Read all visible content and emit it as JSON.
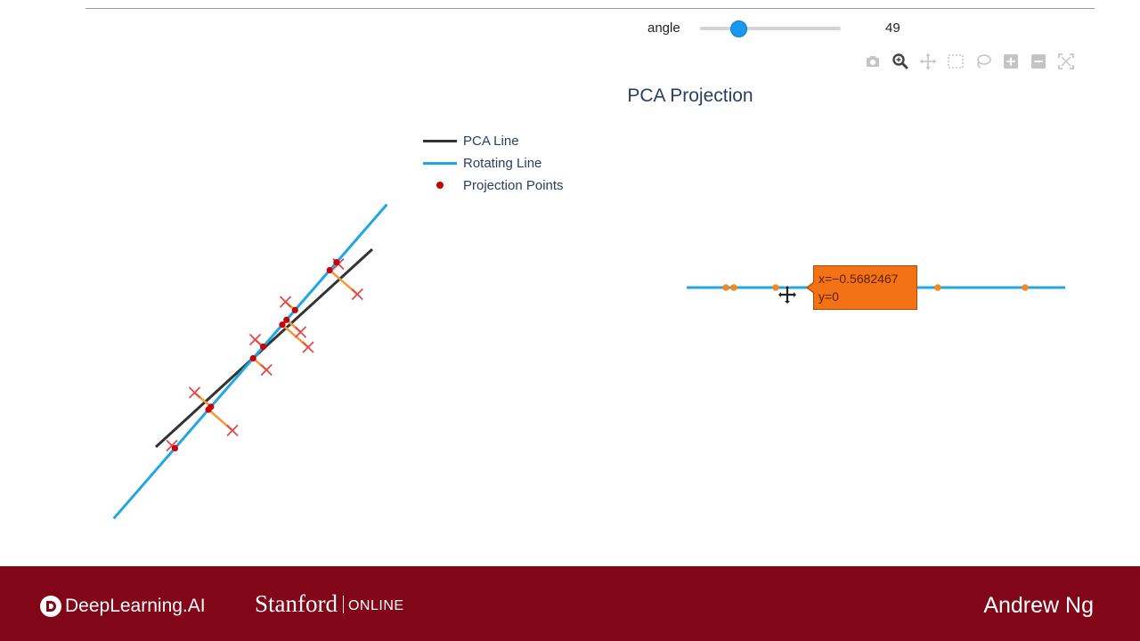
{
  "slider": {
    "label": "angle",
    "value": "49",
    "min": 0,
    "max": 180,
    "position_value": 49,
    "accent_color": "#1a97ef"
  },
  "modebar": {
    "buttons": [
      {
        "name": "camera-icon",
        "active": false
      },
      {
        "name": "zoom-icon",
        "active": true
      },
      {
        "name": "pan-icon",
        "active": false
      },
      {
        "name": "box-select-icon",
        "active": false
      },
      {
        "name": "lasso-select-icon",
        "active": false
      },
      {
        "name": "zoom-in-icon",
        "active": false
      },
      {
        "name": "zoom-out-icon",
        "active": false
      },
      {
        "name": "autoscale-icon",
        "active": false
      }
    ]
  },
  "chart": {
    "title": "PCA Projection",
    "legend": [
      {
        "label": "PCA Line",
        "color": "#333333"
      },
      {
        "label": "Rotating Line",
        "color": "#1ea7e4"
      },
      {
        "label": "Projection Points",
        "color": "#c8000a"
      }
    ],
    "tooltip": {
      "line1": "x=−0.5682467",
      "line2": "y=0"
    }
  },
  "chart_data": [
    {
      "type": "scatter",
      "title": "",
      "description_series": [
        "PCA Line",
        "Rotating Line",
        "Projection Points"
      ],
      "x": [
        -1.2,
        -0.9,
        -0.4,
        -0.1,
        0.05,
        0.3,
        0.5,
        0.6,
        1.0,
        1.25
      ],
      "y": [
        -1.3,
        -0.6,
        -1.1,
        0.1,
        -0.3,
        0.6,
        0.2,
        0.0,
        1.1,
        0.7
      ],
      "rotating_line_angle_deg": 49
    },
    {
      "type": "scatter",
      "title": "PCA Projection",
      "series": [
        {
          "name": "Projection Points",
          "x": [
            -0.6,
            -0.5682467,
            -0.4,
            -0.2,
            0.1,
            0.25,
            0.6
          ],
          "y": [
            0,
            0,
            0,
            0,
            0,
            0,
            0
          ]
        }
      ]
    }
  ],
  "footer": {
    "brand1": "DeepLearning.AI",
    "brand2_name": "Stanford",
    "brand2_suffix": "ONLINE",
    "presenter": "Andrew Ng",
    "background_color": "#810618"
  }
}
